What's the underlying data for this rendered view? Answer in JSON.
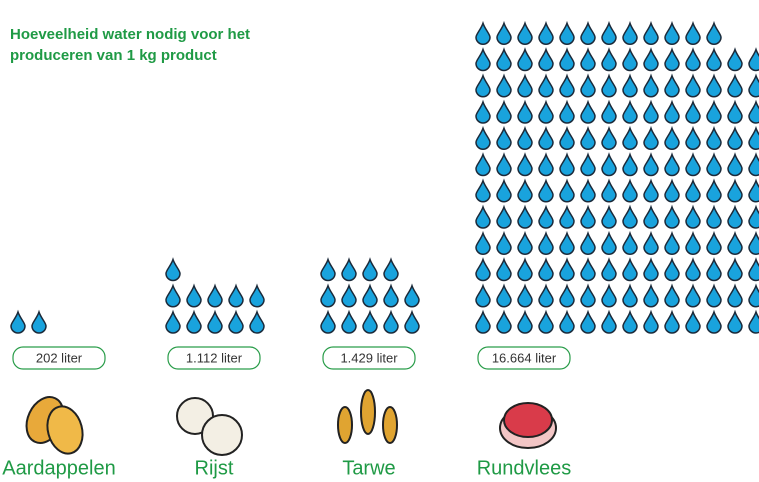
{
  "chart_data": {
    "type": "pictogram",
    "title": [
      "Hoeveelheid water nodig voor het",
      "produceren van 1 kg product"
    ],
    "categories": [
      "Aardappelen",
      "Rijst",
      "Tarwe",
      "Rundvlees"
    ],
    "values": [
      202,
      1112,
      1429,
      16664
    ],
    "value_labels": [
      "202 liter",
      "1.112 liter",
      "1.429 liter",
      "16.664 liter"
    ],
    "color": "#19a3dd"
  }
}
